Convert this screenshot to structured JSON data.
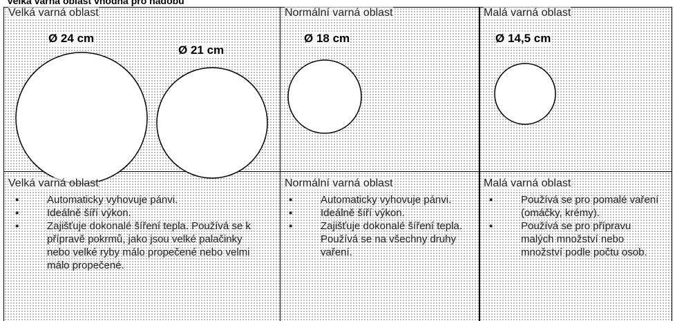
{
  "title": "Velká varná oblast vhodná pro nádobu",
  "columns": [
    {
      "header": "Velká varná oblast",
      "sizes": [
        "Ø 24 cm",
        "Ø 21 cm"
      ],
      "subheader": "Velká varná oblast",
      "items": [
        "Automaticky vyhovuje pánvi.",
        "Ideálně šíří výkon.",
        "Zajišťuje dokonalé šíření tepla. Používá se k přípravě pokrmů, jako jsou velké palačinky nebo velké ryby málo propečené nebo velmi málo propečené."
      ]
    },
    {
      "header": "Normální varná oblast",
      "sizes": [
        "Ø 18 cm"
      ],
      "subheader": "Normální varná oblast",
      "items": [
        "Automaticky vyhovuje pánvi.",
        "Ideálně šíří výkon.",
        "Zajišťuje dokonalé šíření tepla. Používá se na všechny druhy vaření."
      ]
    },
    {
      "header": "Malá varná oblast",
      "sizes": [
        "Ø 14,5 cm"
      ],
      "subheader": "Malá varná oblast",
      "items": [
        "Používá se pro pomalé vaření (omáčky, krémy).",
        "Používá se pro přípravu malých množství nebo množství podle počtu osob."
      ]
    }
  ]
}
